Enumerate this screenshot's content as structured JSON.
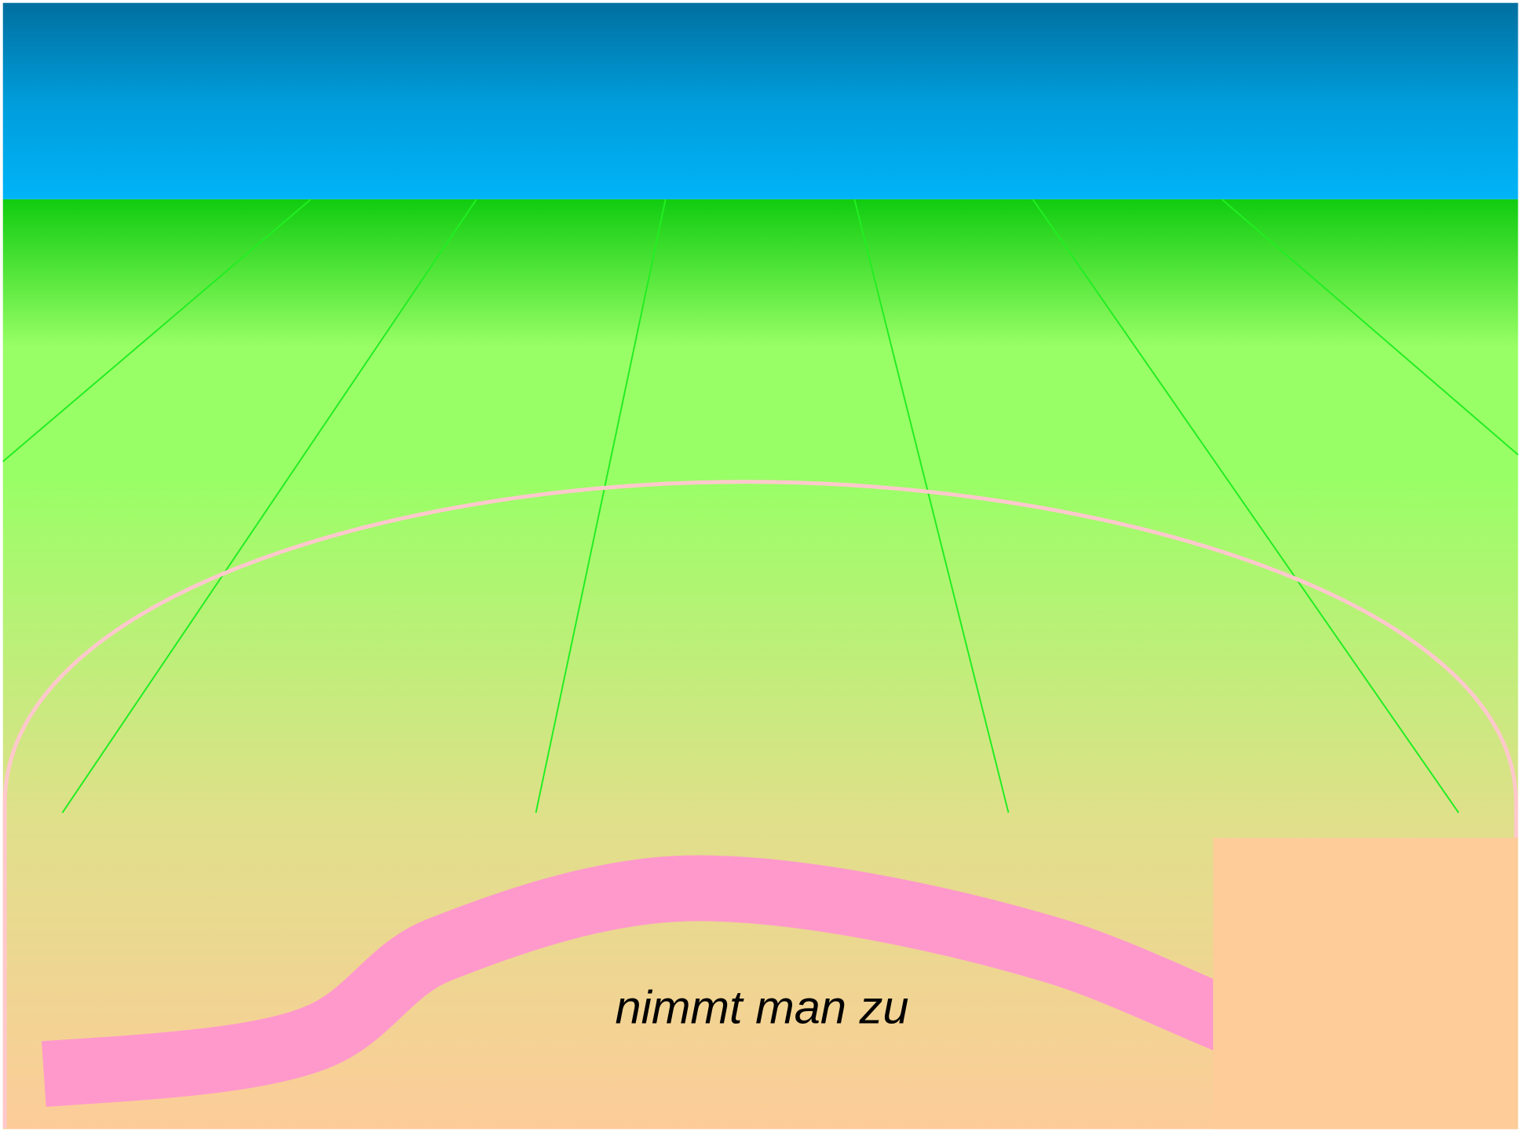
{
  "scene": {
    "caption": "nimmt man zu"
  }
}
